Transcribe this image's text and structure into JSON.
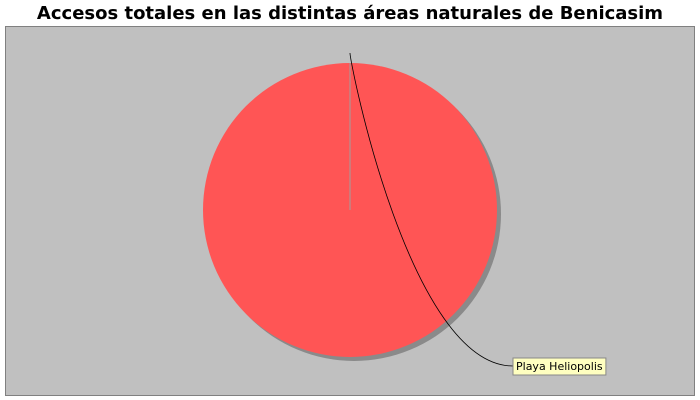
{
  "chart_data": {
    "type": "pie",
    "title": "Accesos totales en las distintas áreas naturales de Benicasim",
    "slices": [
      {
        "label": "Playa Heliopolis",
        "value": 100
      }
    ],
    "legend": "none",
    "colors": {
      "plot_background": "#c0c0c0",
      "plot_border": "#808080",
      "slice_fill": "#ff5555",
      "slice_shadow": "#8a8a8a",
      "label_background": "#ffffc0",
      "label_border": "#888888"
    }
  }
}
